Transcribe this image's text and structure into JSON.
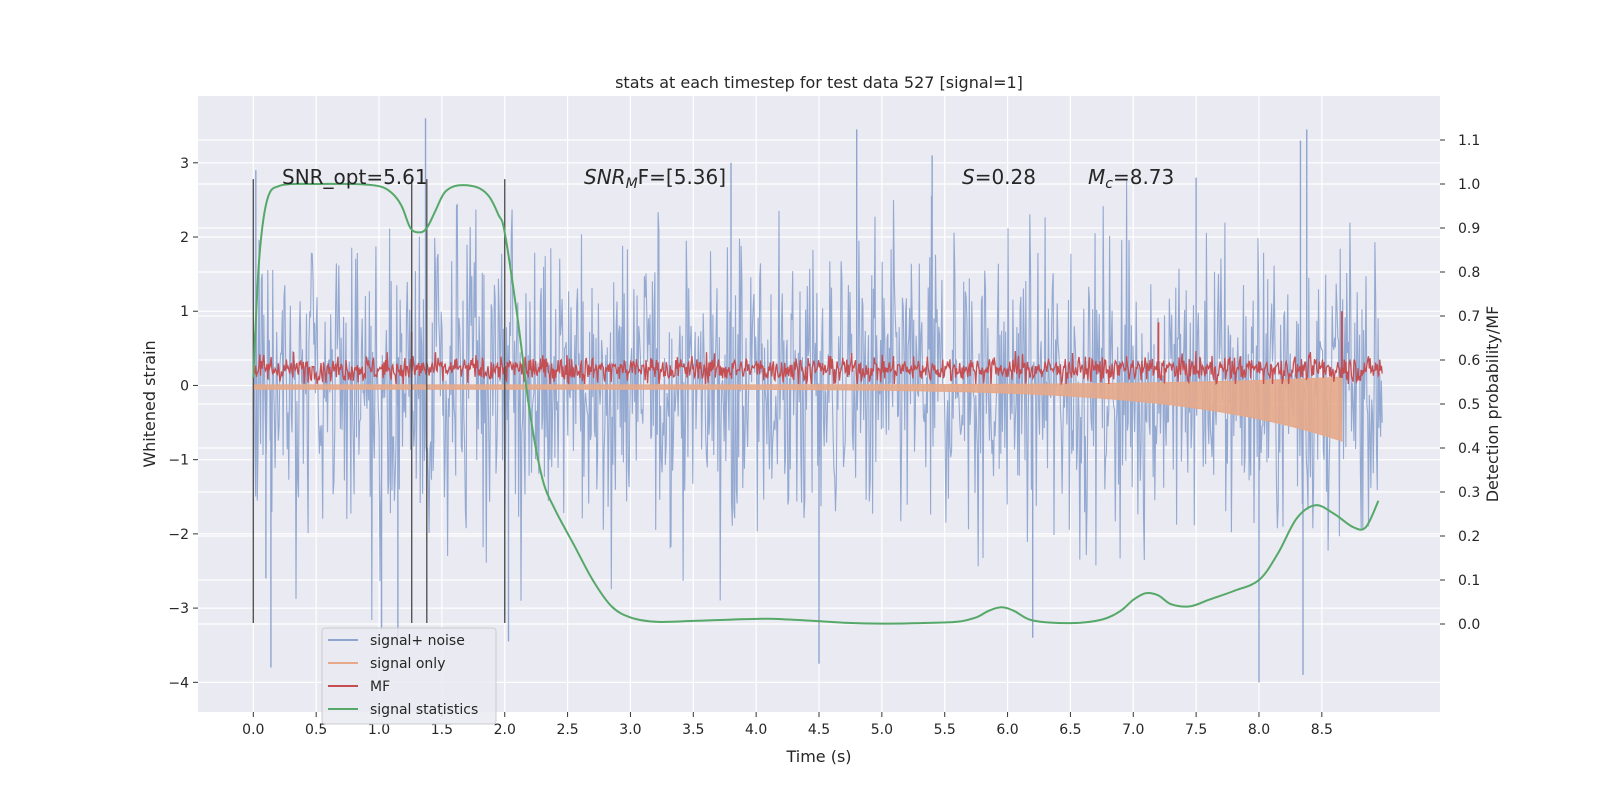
{
  "chart_data": {
    "type": "line",
    "title": "stats at each timestep for test data 527 [signal=1]",
    "xlabel": "Time (s)",
    "ylabel": "Whitened strain",
    "y2label": "Detection probability/MF",
    "xlim": [
      -0.44,
      9.44
    ],
    "ylim": [
      -4.4,
      3.9
    ],
    "y2lim": [
      -0.2,
      1.2
    ],
    "xticks": [
      "0.0",
      "0.5",
      "1.0",
      "1.5",
      "2.0",
      "2.5",
      "3.0",
      "3.5",
      "4.0",
      "4.5",
      "5.0",
      "5.5",
      "6.0",
      "6.5",
      "7.0",
      "7.5",
      "8.0",
      "8.5"
    ],
    "xtick_values": [
      0.0,
      0.5,
      1.0,
      1.5,
      2.0,
      2.5,
      3.0,
      3.5,
      4.0,
      4.5,
      5.0,
      5.5,
      6.0,
      6.5,
      7.0,
      7.5,
      8.0,
      8.5
    ],
    "yticks": [
      "3",
      "2",
      "1",
      "0",
      "−1",
      "−2",
      "−3",
      "−4"
    ],
    "ytick_values": [
      3,
      2,
      1,
      0,
      -1,
      -2,
      -3,
      -4
    ],
    "y2ticks": [
      "1.1",
      "1.0",
      "0.9",
      "0.8",
      "0.7",
      "0.6",
      "0.5",
      "0.4",
      "0.3",
      "0.2",
      "0.1",
      "0.0"
    ],
    "y2tick_values": [
      1.1,
      1.0,
      0.9,
      0.8,
      0.7,
      0.6,
      0.5,
      0.4,
      0.3,
      0.2,
      0.1,
      0.0
    ],
    "legend_position": "lower-left",
    "grid": true,
    "annotations": {
      "snr_opt": "SNR_opt=5.61",
      "snr_mf_sym": "SNR",
      "snr_mf_sub": "M",
      "snr_mf_rest": "F=[5.36]",
      "s_sym": "S",
      "s_rest": "=0.28",
      "mc_sym": "M",
      "mc_sub": "c",
      "mc_rest": "=8.73"
    },
    "vertical_markers": [
      0.0,
      1.26,
      1.38,
      2.0
    ],
    "series": [
      {
        "name": "signal+ noise",
        "axis": "left",
        "color": "#8fa5cf",
        "style": "noise",
        "t_start": 0.0,
        "t_end": 8.98,
        "amplitude": 1.0,
        "peaks": [
          {
            "t": 0.02,
            "v": 2.9
          },
          {
            "t": 0.1,
            "v": -2.6
          },
          {
            "t": 0.14,
            "v": -3.8
          },
          {
            "t": 1.37,
            "v": 3.6
          },
          {
            "t": 1.02,
            "v": -3.3
          },
          {
            "t": 1.15,
            "v": -3.4
          },
          {
            "t": 2.0,
            "v": -3.1
          },
          {
            "t": 2.03,
            "v": -3.45
          },
          {
            "t": 4.8,
            "v": 3.45
          },
          {
            "t": 4.5,
            "v": -3.75
          },
          {
            "t": 8.0,
            "v": -4.0
          },
          {
            "t": 8.33,
            "v": 3.3
          },
          {
            "t": 8.38,
            "v": 3.45
          },
          {
            "t": 8.35,
            "v": -3.9
          },
          {
            "t": 7.5,
            "v": 2.8
          },
          {
            "t": 5.4,
            "v": 3.1
          },
          {
            "t": 3.8,
            "v": 3.0
          },
          {
            "t": 6.2,
            "v": -3.4
          }
        ]
      },
      {
        "name": "signal only",
        "axis": "left",
        "color": "#e6a889",
        "style": "chirp",
        "t_start": 0.0,
        "t_end": 8.66,
        "min_value": -0.75
      },
      {
        "name": "MF",
        "axis": "left",
        "color": "#c44e52",
        "style": "mf",
        "t_start": 0.0,
        "t_end": 8.98,
        "baseline": 0.0,
        "mean": 0.22,
        "peaks": [
          {
            "t": 1.26,
            "v": 0.72
          },
          {
            "t": 8.66,
            "v": 1.0
          },
          {
            "t": 7.2,
            "v": 0.85
          }
        ]
      },
      {
        "name": "signal statistics",
        "axis": "right",
        "color": "#55a868",
        "style": "line",
        "t": [
          0.0,
          0.04,
          0.08,
          0.13,
          0.2,
          0.3,
          0.5,
          0.8,
          1.0,
          1.1,
          1.18,
          1.25,
          1.32,
          1.38,
          1.45,
          1.52,
          1.6,
          1.7,
          1.8,
          1.88,
          1.95,
          2.0,
          2.1,
          2.2,
          2.3,
          2.4,
          2.55,
          2.7,
          2.85,
          3.0,
          3.2,
          3.5,
          3.8,
          4.1,
          4.4,
          4.7,
          5.0,
          5.3,
          5.6,
          5.75,
          5.85,
          5.95,
          6.05,
          6.2,
          6.5,
          6.75,
          6.9,
          7.0,
          7.1,
          7.2,
          7.3,
          7.45,
          7.6,
          7.8,
          8.0,
          8.15,
          8.3,
          8.45,
          8.6,
          8.75,
          8.85,
          8.95
        ],
        "values": [
          0.56,
          0.8,
          0.92,
          0.98,
          0.995,
          1.0,
          1.0,
          1.0,
          0.995,
          0.98,
          0.95,
          0.9,
          0.89,
          0.9,
          0.94,
          0.98,
          0.995,
          0.997,
          0.99,
          0.97,
          0.93,
          0.89,
          0.7,
          0.48,
          0.33,
          0.26,
          0.18,
          0.1,
          0.04,
          0.015,
          0.005,
          0.007,
          0.01,
          0.012,
          0.008,
          0.003,
          0.001,
          0.002,
          0.005,
          0.015,
          0.03,
          0.038,
          0.03,
          0.008,
          0.002,
          0.01,
          0.03,
          0.055,
          0.07,
          0.065,
          0.045,
          0.04,
          0.055,
          0.075,
          0.1,
          0.16,
          0.24,
          0.27,
          0.25,
          0.22,
          0.22,
          0.28
        ]
      }
    ]
  }
}
